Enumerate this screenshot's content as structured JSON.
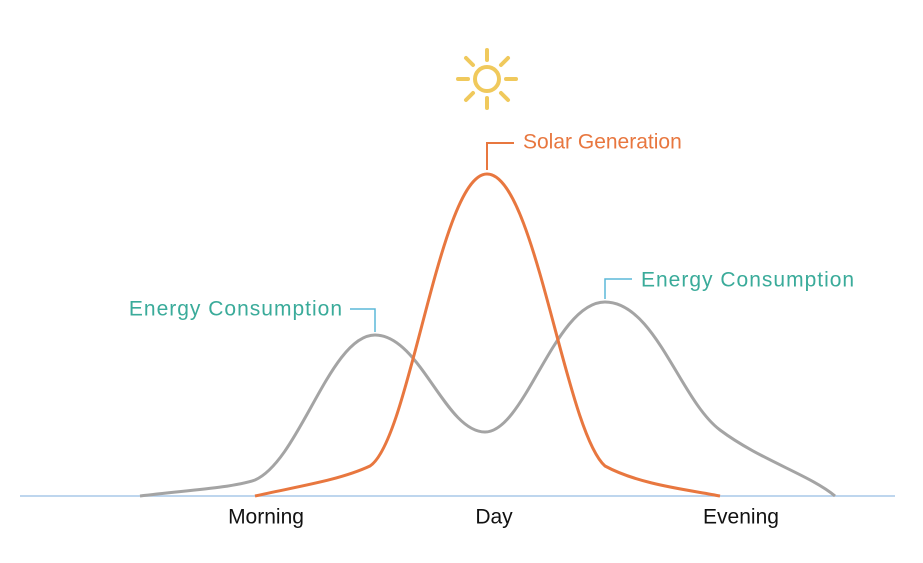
{
  "callouts": [
    "Solar Generation",
    "Energy Consumption",
    "Energy Consumption"
  ],
  "x_labels": [
    "Morning",
    "Day",
    "Evening"
  ]
}
